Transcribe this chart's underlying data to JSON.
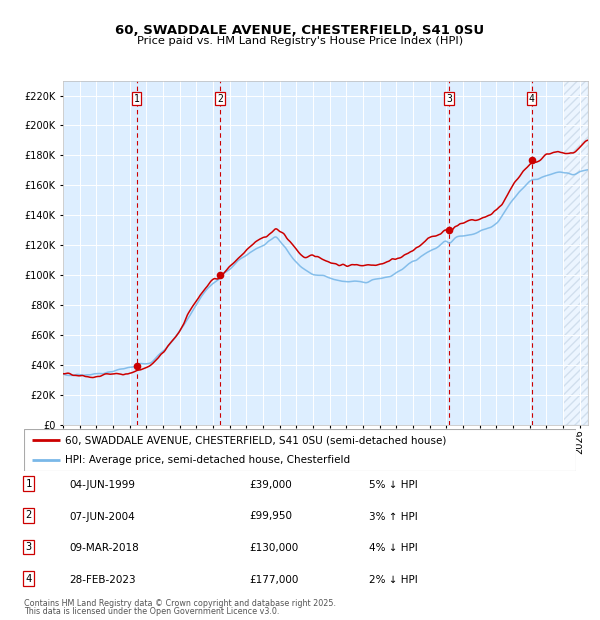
{
  "title_line1": "60, SWADDALE AVENUE, CHESTERFIELD, S41 0SU",
  "title_line2": "Price paid vs. HM Land Registry's House Price Index (HPI)",
  "ylim": [
    0,
    230000
  ],
  "yticks": [
    0,
    20000,
    40000,
    60000,
    80000,
    100000,
    120000,
    140000,
    160000,
    180000,
    200000,
    220000
  ],
  "ytick_labels": [
    "£0",
    "£20K",
    "£40K",
    "£60K",
    "£80K",
    "£100K",
    "£120K",
    "£140K",
    "£160K",
    "£180K",
    "£200K",
    "£220K"
  ],
  "xlim_start": 1995.0,
  "xlim_end": 2026.5,
  "hpi_color": "#7ab8e8",
  "price_color": "#cc0000",
  "bg_color": "#ddeeff",
  "grid_color": "#ffffff",
  "vline_color": "#cc0000",
  "hatch_start": 2025.0,
  "transactions": [
    {
      "num": 1,
      "year": 1999.42,
      "price": 39000,
      "date": "04-JUN-1999",
      "pct": "5%",
      "dir": "↓"
    },
    {
      "num": 2,
      "year": 2004.42,
      "price": 99950,
      "date": "07-JUN-2004",
      "pct": "3%",
      "dir": "↑"
    },
    {
      "num": 3,
      "year": 2018.17,
      "price": 130000,
      "date": "09-MAR-2018",
      "pct": "4%",
      "dir": "↓"
    },
    {
      "num": 4,
      "year": 2023.12,
      "price": 177000,
      "date": "28-FEB-2023",
      "pct": "2%",
      "dir": "↓"
    }
  ],
  "legend_label1": "60, SWADDALE AVENUE, CHESTERFIELD, S41 0SU (semi-detached house)",
  "legend_label2": "HPI: Average price, semi-detached house, Chesterfield",
  "footer1": "Contains HM Land Registry data © Crown copyright and database right 2025.",
  "footer2": "This data is licensed under the Open Government Licence v3.0.",
  "hpi_knots": [
    [
      1995.0,
      34000
    ],
    [
      1995.5,
      33500
    ],
    [
      1996.0,
      34500
    ],
    [
      1996.5,
      35000
    ],
    [
      1997.0,
      35500
    ],
    [
      1997.5,
      36500
    ],
    [
      1998.0,
      37000
    ],
    [
      1998.5,
      37500
    ],
    [
      1999.0,
      38000
    ],
    [
      1999.42,
      39000
    ],
    [
      1999.5,
      39500
    ],
    [
      2000.0,
      42000
    ],
    [
      2000.5,
      46000
    ],
    [
      2001.0,
      51000
    ],
    [
      2001.5,
      57000
    ],
    [
      2002.0,
      65000
    ],
    [
      2002.5,
      74000
    ],
    [
      2003.0,
      83000
    ],
    [
      2003.5,
      91000
    ],
    [
      2004.0,
      97000
    ],
    [
      2004.42,
      100000
    ],
    [
      2004.5,
      101000
    ],
    [
      2005.0,
      107000
    ],
    [
      2005.5,
      112000
    ],
    [
      2006.0,
      116000
    ],
    [
      2006.5,
      120000
    ],
    [
      2007.0,
      124000
    ],
    [
      2007.5,
      128000
    ],
    [
      2007.8,
      130000
    ],
    [
      2008.0,
      128000
    ],
    [
      2008.5,
      122000
    ],
    [
      2009.0,
      115000
    ],
    [
      2009.5,
      110000
    ],
    [
      2010.0,
      109000
    ],
    [
      2010.5,
      108000
    ],
    [
      2011.0,
      107000
    ],
    [
      2011.5,
      106000
    ],
    [
      2012.0,
      105000
    ],
    [
      2012.5,
      105500
    ],
    [
      2013.0,
      106000
    ],
    [
      2013.5,
      108000
    ],
    [
      2014.0,
      110000
    ],
    [
      2014.5,
      112000
    ],
    [
      2015.0,
      114000
    ],
    [
      2015.5,
      116000
    ],
    [
      2016.0,
      119000
    ],
    [
      2016.5,
      122000
    ],
    [
      2017.0,
      125000
    ],
    [
      2017.5,
      128000
    ],
    [
      2018.0,
      131000
    ],
    [
      2018.17,
      130000
    ],
    [
      2018.5,
      134000
    ],
    [
      2019.0,
      137000
    ],
    [
      2019.5,
      139000
    ],
    [
      2020.0,
      140000
    ],
    [
      2020.5,
      143000
    ],
    [
      2021.0,
      147000
    ],
    [
      2021.5,
      155000
    ],
    [
      2022.0,
      163000
    ],
    [
      2022.5,
      170000
    ],
    [
      2023.0,
      176000
    ],
    [
      2023.12,
      177000
    ],
    [
      2023.5,
      178000
    ],
    [
      2024.0,
      181000
    ],
    [
      2024.5,
      183000
    ],
    [
      2025.0,
      182000
    ],
    [
      2025.5,
      181000
    ],
    [
      2026.0,
      183000
    ],
    [
      2026.5,
      185000
    ]
  ]
}
